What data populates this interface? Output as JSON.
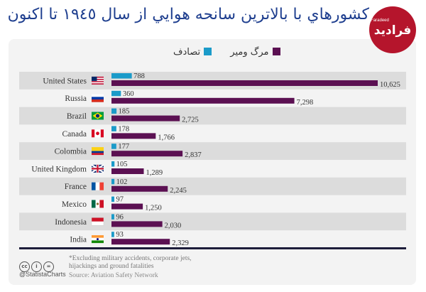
{
  "title": "كشورهاي با بالاترين سانحه هوايي از سال ١٩٤٥ تا اكنون",
  "logo": {
    "text": "فرادید",
    "small": "Faradeed",
    "color": "#b5152c"
  },
  "legend": {
    "accidents_label": "تصادف",
    "deaths_label": "مرگ ومیر"
  },
  "colors": {
    "accidents": "#1b9bc9",
    "deaths": "#5b1052",
    "stripe": "#dcdcdc",
    "card": "#f3f3f3"
  },
  "chart_data": {
    "type": "bar",
    "orientation": "horizontal",
    "categories": [
      "United States",
      "Russia",
      "Brazil",
      "Canada",
      "Colombia",
      "United Kingdom",
      "France",
      "Mexico",
      "Indonesia",
      "India"
    ],
    "flags": [
      "us",
      "ru",
      "br",
      "ca",
      "co",
      "gb",
      "fr",
      "mx",
      "id",
      "in"
    ],
    "series": [
      {
        "name": "تصادف",
        "values": [
          788,
          360,
          185,
          178,
          177,
          105,
          102,
          97,
          96,
          93
        ]
      },
      {
        "name": "مرگ ومیر",
        "values": [
          10625,
          7298,
          2725,
          1766,
          2837,
          1289,
          2245,
          1250,
          2030,
          2329
        ]
      }
    ],
    "value_labels": {
      "accidents": [
        "788",
        "360",
        "185",
        "178",
        "177",
        "105",
        "102",
        "97",
        "96",
        "93"
      ],
      "deaths": [
        "10,625",
        "7,298",
        "2,725",
        "1,766",
        "2,837",
        "1,289",
        "2,245",
        "1,250",
        "2,030",
        "2,329"
      ]
    },
    "xlim": [
      0,
      10625
    ]
  },
  "footer": {
    "handle": "@StatistaCharts",
    "note": "*Excluding military accidents, corporate jets, hijackings and ground fatalities",
    "source": "Source: Aviation Safety Network"
  }
}
